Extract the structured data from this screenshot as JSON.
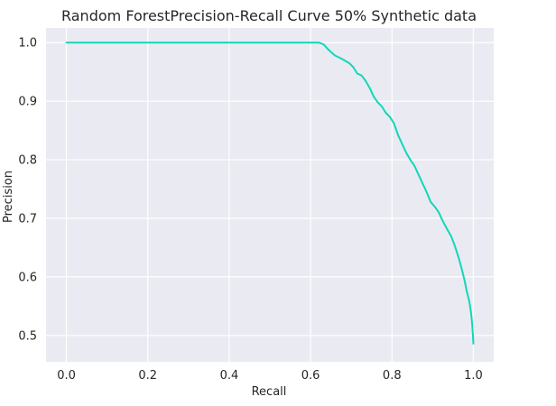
{
  "chart_data": {
    "type": "line",
    "title": "Random ForestPrecision-Recall Curve 50% Synthetic data",
    "xlabel": "Recall",
    "ylabel": "Precision",
    "xlim": [
      -0.05,
      1.05
    ],
    "ylim": [
      0.455,
      1.025
    ],
    "xticks": [
      0.0,
      0.2,
      0.4,
      0.6,
      0.8,
      1.0
    ],
    "xtick_labels": [
      "0.0",
      "0.2",
      "0.4",
      "0.6",
      "0.8",
      "1.0"
    ],
    "yticks": [
      0.5,
      0.6,
      0.7,
      0.8,
      0.9,
      1.0
    ],
    "ytick_labels": [
      "0.5",
      "0.6",
      "0.7",
      "0.8",
      "0.9",
      "1.0"
    ],
    "grid": true,
    "background_color": "#eaeaf2",
    "grid_color": "#ffffff",
    "series": [
      {
        "color": "#10d8b8",
        "x": [
          0.0,
          0.3,
          0.62,
          0.632,
          0.641,
          0.65,
          0.66,
          0.672,
          0.685,
          0.695,
          0.705,
          0.715,
          0.725,
          0.735,
          0.745,
          0.755,
          0.765,
          0.775,
          0.785,
          0.795,
          0.805,
          0.815,
          0.825,
          0.835,
          0.845,
          0.855,
          0.865,
          0.875,
          0.885,
          0.895,
          0.905,
          0.915,
          0.925,
          0.935,
          0.945,
          0.955,
          0.965,
          0.972,
          0.978,
          0.984,
          0.99,
          0.994,
          0.997,
          0.999,
          1.0
        ],
        "y": [
          1.0,
          1.0,
          1.0,
          0.997,
          0.99,
          0.984,
          0.978,
          0.974,
          0.969,
          0.965,
          0.958,
          0.947,
          0.944,
          0.935,
          0.923,
          0.908,
          0.898,
          0.891,
          0.88,
          0.873,
          0.862,
          0.842,
          0.827,
          0.812,
          0.8,
          0.79,
          0.775,
          0.76,
          0.745,
          0.728,
          0.72,
          0.71,
          0.695,
          0.682,
          0.67,
          0.652,
          0.63,
          0.612,
          0.595,
          0.575,
          0.558,
          0.54,
          0.52,
          0.5,
          0.486
        ]
      }
    ]
  }
}
